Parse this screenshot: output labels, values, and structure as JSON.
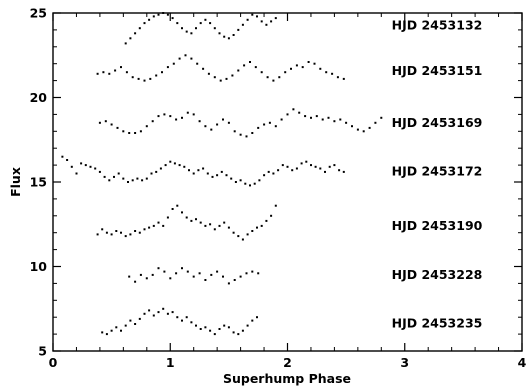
{
  "chart_data": {
    "type": "scatter",
    "title": "",
    "xlabel": "Superhump Phase",
    "ylabel": "Flux",
    "xlim": [
      0,
      4
    ],
    "ylim": [
      5,
      25
    ],
    "xticks": [
      0,
      1,
      2,
      3,
      4
    ],
    "yticks": [
      5,
      10,
      15,
      20,
      25
    ],
    "grid": false,
    "legend": "none",
    "marker_color": "#000000",
    "series": [
      {
        "name": "HJD 2453132",
        "x": [
          0.62,
          0.66,
          0.7,
          0.74,
          0.78,
          0.82,
          0.86,
          0.9,
          0.94,
          0.98,
          1.02,
          1.06,
          1.1,
          1.14,
          1.18,
          1.22,
          1.26,
          1.3,
          1.34,
          1.38,
          1.42,
          1.46,
          1.5,
          1.54,
          1.58,
          1.62,
          1.66,
          1.7,
          1.74,
          1.78,
          1.82,
          1.86,
          1.9
        ],
        "y": [
          23.2,
          23.5,
          23.8,
          24.1,
          24.4,
          24.6,
          24.8,
          24.9,
          25.0,
          24.9,
          24.7,
          24.4,
          24.1,
          23.9,
          23.8,
          24.1,
          24.4,
          24.6,
          24.4,
          24.1,
          23.8,
          23.6,
          23.5,
          23.7,
          24.0,
          24.3,
          24.6,
          24.9,
          24.8,
          24.5,
          24.3,
          24.5,
          24.7
        ]
      },
      {
        "name": "HJD 2453151",
        "x": [
          0.38,
          0.43,
          0.48,
          0.53,
          0.58,
          0.63,
          0.68,
          0.73,
          0.78,
          0.83,
          0.88,
          0.93,
          0.98,
          1.03,
          1.08,
          1.13,
          1.18,
          1.23,
          1.28,
          1.33,
          1.38,
          1.43,
          1.48,
          1.53,
          1.58,
          1.63,
          1.68,
          1.73,
          1.78,
          1.83,
          1.88,
          1.93,
          1.98,
          2.03,
          2.08,
          2.13,
          2.18,
          2.23,
          2.28,
          2.33,
          2.38,
          2.43,
          2.48
        ],
        "y": [
          21.4,
          21.5,
          21.4,
          21.6,
          21.8,
          21.5,
          21.2,
          21.1,
          21.0,
          21.1,
          21.3,
          21.5,
          21.8,
          22.0,
          22.3,
          22.5,
          22.3,
          22.0,
          21.7,
          21.4,
          21.2,
          21.0,
          21.1,
          21.3,
          21.6,
          21.9,
          22.1,
          21.8,
          21.5,
          21.2,
          21.0,
          21.2,
          21.5,
          21.7,
          21.9,
          21.8,
          22.1,
          22.0,
          21.7,
          21.5,
          21.4,
          21.2,
          21.1
        ]
      },
      {
        "name": "HJD 2453169",
        "x": [
          0.4,
          0.45,
          0.5,
          0.55,
          0.6,
          0.65,
          0.7,
          0.75,
          0.8,
          0.85,
          0.9,
          0.95,
          1.0,
          1.05,
          1.1,
          1.15,
          1.2,
          1.25,
          1.3,
          1.35,
          1.4,
          1.45,
          1.5,
          1.55,
          1.6,
          1.65,
          1.7,
          1.75,
          1.8,
          1.85,
          1.9,
          1.95,
          2.0,
          2.05,
          2.1,
          2.15,
          2.2,
          2.25,
          2.3,
          2.35,
          2.4,
          2.45,
          2.5,
          2.55,
          2.6,
          2.65,
          2.7,
          2.75,
          2.8
        ],
        "y": [
          18.5,
          18.6,
          18.4,
          18.2,
          18.0,
          17.9,
          17.9,
          18.0,
          18.3,
          18.6,
          18.9,
          19.0,
          18.9,
          18.7,
          18.8,
          19.1,
          19.0,
          18.6,
          18.3,
          18.1,
          18.4,
          18.7,
          18.5,
          18.0,
          17.8,
          17.7,
          17.9,
          18.2,
          18.4,
          18.5,
          18.3,
          18.7,
          19.0,
          19.3,
          19.1,
          18.9,
          18.8,
          18.9,
          18.7,
          18.8,
          18.6,
          18.7,
          18.5,
          18.3,
          18.1,
          18.0,
          18.2,
          18.5,
          18.8
        ]
      },
      {
        "name": "HJD 2453172",
        "x": [
          0.08,
          0.12,
          0.16,
          0.2,
          0.24,
          0.28,
          0.32,
          0.36,
          0.4,
          0.44,
          0.48,
          0.52,
          0.56,
          0.6,
          0.64,
          0.68,
          0.72,
          0.76,
          0.8,
          0.84,
          0.88,
          0.92,
          0.96,
          1.0,
          1.04,
          1.08,
          1.12,
          1.16,
          1.2,
          1.24,
          1.28,
          1.32,
          1.36,
          1.4,
          1.44,
          1.48,
          1.52,
          1.56,
          1.6,
          1.64,
          1.68,
          1.72,
          1.76,
          1.8,
          1.84,
          1.88,
          1.92,
          1.96,
          2.0,
          2.04,
          2.08,
          2.12,
          2.16,
          2.2,
          2.24,
          2.28,
          2.32,
          2.36,
          2.4,
          2.44,
          2.48
        ],
        "y": [
          16.5,
          16.3,
          15.9,
          15.5,
          16.1,
          16.0,
          15.9,
          15.8,
          15.6,
          15.3,
          15.1,
          15.3,
          15.5,
          15.2,
          15.0,
          15.1,
          15.2,
          15.1,
          15.2,
          15.5,
          15.6,
          15.8,
          16.0,
          16.2,
          16.1,
          16.0,
          15.9,
          15.7,
          15.5,
          15.7,
          15.8,
          15.5,
          15.3,
          15.4,
          15.6,
          15.4,
          15.2,
          15.0,
          15.1,
          14.9,
          14.8,
          14.9,
          15.1,
          15.4,
          15.6,
          15.5,
          15.7,
          16.0,
          15.9,
          15.7,
          15.8,
          16.1,
          16.2,
          16.0,
          15.9,
          15.8,
          15.6,
          15.9,
          16.0,
          15.7,
          15.6
        ]
      },
      {
        "name": "HJD 2453190",
        "x": [
          0.38,
          0.42,
          0.46,
          0.5,
          0.54,
          0.58,
          0.62,
          0.66,
          0.7,
          0.74,
          0.78,
          0.82,
          0.86,
          0.9,
          0.94,
          0.98,
          1.02,
          1.06,
          1.1,
          1.14,
          1.18,
          1.22,
          1.26,
          1.3,
          1.34,
          1.38,
          1.42,
          1.46,
          1.5,
          1.54,
          1.58,
          1.62,
          1.66,
          1.7,
          1.74,
          1.78,
          1.82,
          1.86,
          1.9
        ],
        "y": [
          11.9,
          12.2,
          12.0,
          11.9,
          12.1,
          12.0,
          11.8,
          11.9,
          12.1,
          12.0,
          12.2,
          12.3,
          12.4,
          12.6,
          12.4,
          12.9,
          13.4,
          13.6,
          13.2,
          12.9,
          12.7,
          12.8,
          12.6,
          12.4,
          12.5,
          12.2,
          12.4,
          12.6,
          12.3,
          12.0,
          11.8,
          11.6,
          11.9,
          12.1,
          12.3,
          12.4,
          12.7,
          13.0,
          13.6
        ]
      },
      {
        "name": "HJD 2453228",
        "x": [
          0.65,
          0.7,
          0.75,
          0.8,
          0.85,
          0.9,
          0.95,
          1.0,
          1.05,
          1.1,
          1.15,
          1.2,
          1.25,
          1.3,
          1.35,
          1.4,
          1.45,
          1.5,
          1.55,
          1.6,
          1.65,
          1.7,
          1.75
        ],
        "y": [
          9.4,
          9.1,
          9.5,
          9.3,
          9.5,
          9.9,
          9.7,
          9.3,
          9.6,
          9.9,
          9.7,
          9.4,
          9.6,
          9.2,
          9.5,
          9.7,
          9.4,
          9.0,
          9.2,
          9.4,
          9.6,
          9.7,
          9.6
        ]
      },
      {
        "name": "HJD 2453235",
        "x": [
          0.42,
          0.46,
          0.5,
          0.54,
          0.58,
          0.62,
          0.66,
          0.7,
          0.74,
          0.78,
          0.82,
          0.86,
          0.9,
          0.94,
          0.98,
          1.02,
          1.06,
          1.1,
          1.14,
          1.18,
          1.22,
          1.26,
          1.3,
          1.34,
          1.38,
          1.42,
          1.46,
          1.5,
          1.54,
          1.58,
          1.62,
          1.66,
          1.7,
          1.74
        ],
        "y": [
          6.1,
          6.0,
          6.2,
          6.4,
          6.2,
          6.5,
          6.8,
          6.6,
          6.9,
          7.2,
          7.4,
          7.1,
          7.3,
          7.5,
          7.2,
          7.3,
          7.0,
          6.8,
          7.0,
          6.7,
          6.5,
          6.3,
          6.4,
          6.2,
          6.0,
          6.3,
          6.5,
          6.4,
          6.1,
          6.0,
          6.2,
          6.5,
          6.8,
          7.0
        ]
      }
    ]
  }
}
